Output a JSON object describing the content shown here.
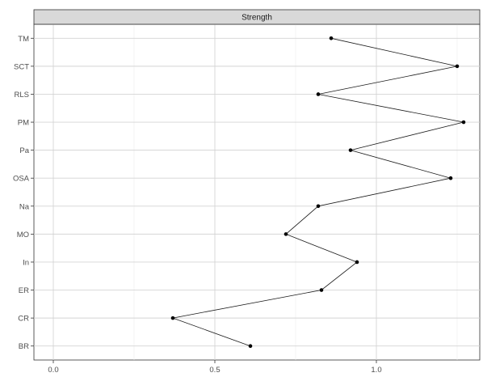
{
  "chart_data": {
    "type": "line",
    "facet_title": "Strength",
    "orientation": "horizontal-categories-on-y",
    "categories": [
      "TM",
      "SCT",
      "RLS",
      "PM",
      "Pa",
      "OSA",
      "Na",
      "MO",
      "In",
      "ER",
      "CR",
      "BR"
    ],
    "values": [
      0.86,
      1.25,
      0.82,
      1.27,
      0.92,
      1.23,
      0.82,
      0.72,
      0.94,
      0.83,
      0.37,
      0.61
    ],
    "x_ticks": [
      0.0,
      0.5,
      1.0
    ],
    "x_tick_labels": [
      "0.0",
      "0.5",
      "1.0"
    ],
    "xlim": [
      -0.06,
      1.32
    ],
    "grid": true,
    "colors": {
      "line": "#1a1a1a",
      "point": "#000000",
      "strip": "#d9d9d9",
      "grid": "#d4d4d4"
    }
  }
}
